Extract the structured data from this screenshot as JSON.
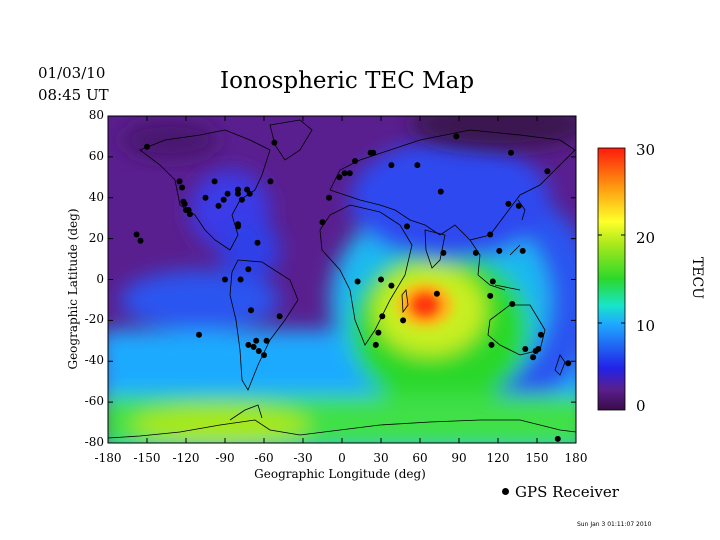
{
  "header": {
    "date": "01/03/10",
    "time": "08:45 UT",
    "title": "Ionospheric TEC Map"
  },
  "map": {
    "xlabel": "Geographic Longitude (deg)",
    "ylabel": "Geographic Latitude (deg)",
    "x_ticks": [
      "-180",
      "-150",
      "-120",
      "-90",
      "-60",
      "-30",
      "0",
      "30",
      "60",
      "90",
      "120",
      "150",
      "180"
    ],
    "y_ticks": [
      "80",
      "60",
      "40",
      "20",
      "0",
      "-20",
      "-40",
      "-60",
      "-80"
    ],
    "lon_range": [
      -180,
      180
    ],
    "lat_range": [
      -80,
      80
    ],
    "tec_peak": {
      "lon": 65,
      "lat": -12,
      "tecu": 27
    },
    "gps_receivers": [
      [
        -150,
        65
      ],
      [
        -125,
        48
      ],
      [
        -123,
        45
      ],
      [
        -122,
        38
      ],
      [
        -121,
        37
      ],
      [
        -120,
        34
      ],
      [
        -118,
        34
      ],
      [
        -105,
        40
      ],
      [
        -98,
        48
      ],
      [
        -95,
        36
      ],
      [
        -91,
        39
      ],
      [
        -88,
        42
      ],
      [
        -80,
        44
      ],
      [
        -80,
        42
      ],
      [
        -77,
        39
      ],
      [
        -73,
        44
      ],
      [
        -71,
        42
      ],
      [
        -55,
        48
      ],
      [
        -52,
        67
      ],
      [
        -158,
        22
      ],
      [
        -155,
        19
      ],
      [
        -117,
        32
      ],
      [
        -80,
        26
      ],
      [
        -80,
        27
      ],
      [
        -65,
        18
      ],
      [
        -90,
        0
      ],
      [
        -78,
        0
      ],
      [
        -72,
        5
      ],
      [
        -70,
        -15
      ],
      [
        -66,
        -30
      ],
      [
        -72,
        -32
      ],
      [
        -68,
        -33
      ],
      [
        -64,
        -35
      ],
      [
        -60,
        -37
      ],
      [
        -58,
        -30
      ],
      [
        -48,
        -18
      ],
      [
        -110,
        -27
      ],
      [
        -10,
        40
      ],
      [
        -2,
        50
      ],
      [
        2,
        52
      ],
      [
        6,
        52
      ],
      [
        10,
        58
      ],
      [
        22,
        62
      ],
      [
        24,
        62
      ],
      [
        38,
        56
      ],
      [
        58,
        56
      ],
      [
        76,
        43
      ],
      [
        88,
        70
      ],
      [
        130,
        62
      ],
      [
        158,
        53
      ],
      [
        -15,
        28
      ],
      [
        50,
        26
      ],
      [
        12,
        -1
      ],
      [
        30,
        0
      ],
      [
        38,
        -3
      ],
      [
        31,
        -18
      ],
      [
        28,
        -26
      ],
      [
        26,
        -32
      ],
      [
        47,
        -20
      ],
      [
        73,
        -7
      ],
      [
        78,
        13
      ],
      [
        116,
        -1
      ],
      [
        103,
        13
      ],
      [
        114,
        22
      ],
      [
        121,
        14
      ],
      [
        139,
        14
      ],
      [
        136,
        36
      ],
      [
        128,
        37
      ],
      [
        114,
        -8
      ],
      [
        115,
        -32
      ],
      [
        131,
        -12
      ],
      [
        141,
        -34
      ],
      [
        149,
        -35
      ],
      [
        147,
        -38
      ],
      [
        151,
        -34
      ],
      [
        153,
        -27
      ],
      [
        174,
        -41
      ],
      [
        166,
        -78
      ]
    ]
  },
  "colorbar": {
    "title": "TECU",
    "ticks": [
      "30",
      "20",
      "10",
      "0"
    ],
    "range": [
      0,
      30
    ]
  },
  "legend": {
    "label": "GPS Receiver"
  },
  "footer": {
    "stamp": "Sun Jan  3 01:11:07 2010"
  }
}
